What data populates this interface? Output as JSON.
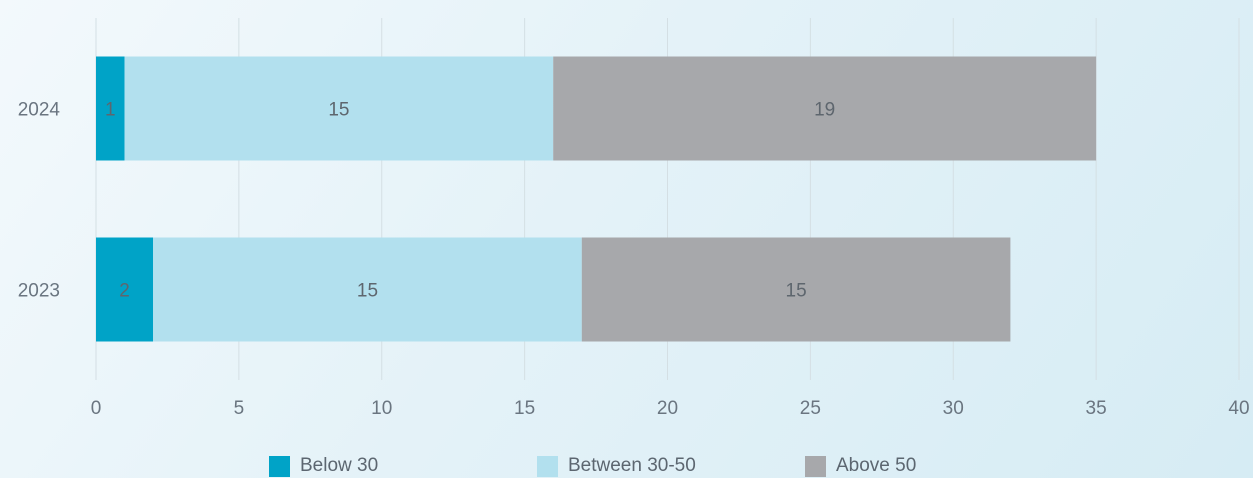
{
  "chart_data": {
    "type": "bar",
    "orientation": "horizontal",
    "stacked": true,
    "categories": [
      "2024",
      "2023"
    ],
    "series": [
      {
        "name": "Below 30",
        "values": [
          1,
          2
        ],
        "color": "#00a3c7"
      },
      {
        "name": "Between 30-50",
        "values": [
          15,
          15
        ],
        "color": "#b2e0ee"
      },
      {
        "name": "Above 50",
        "values": [
          19,
          15
        ],
        "color": "#a7a8ab"
      }
    ],
    "xlim": [
      0,
      40
    ],
    "xticks": [
      0,
      5,
      10,
      15,
      20,
      25,
      30,
      35,
      40
    ],
    "grid": "vertical",
    "legend": "bottom",
    "data_labels": true
  },
  "legend_items": [
    "Below 30",
    "Between 30-50",
    "Above 50"
  ]
}
